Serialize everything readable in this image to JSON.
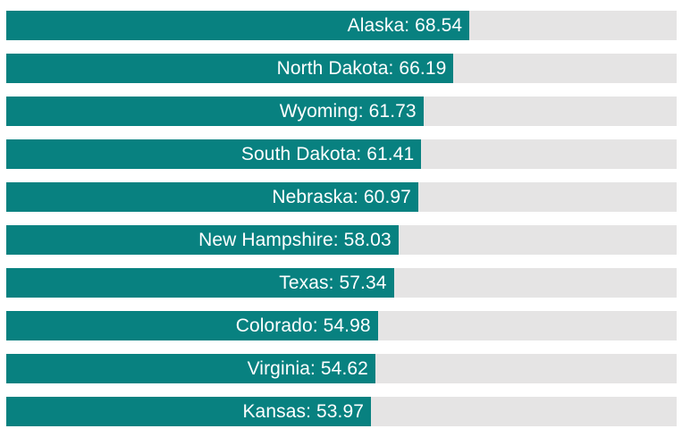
{
  "chart_data": {
    "type": "bar",
    "orientation": "horizontal",
    "title": "",
    "xlabel": "",
    "ylabel": "",
    "xlim": [
      0,
      99.2
    ],
    "grid": false,
    "legend": false,
    "label_format": "{category}: {value}",
    "value_decimals": 2,
    "categories": [
      "Alaska",
      "North Dakota",
      "Wyoming",
      "South Dakota",
      "Nebraska",
      "New Hampshire",
      "Texas",
      "Colorado",
      "Virginia",
      "Kansas"
    ],
    "values": [
      68.54,
      66.19,
      61.73,
      61.41,
      60.97,
      58.03,
      57.34,
      54.98,
      54.62,
      53.97
    ],
    "colors": {
      "bar": "#088180",
      "track": "#e5e4e4",
      "label": "#ffffff",
      "background": "#ffffff"
    }
  }
}
